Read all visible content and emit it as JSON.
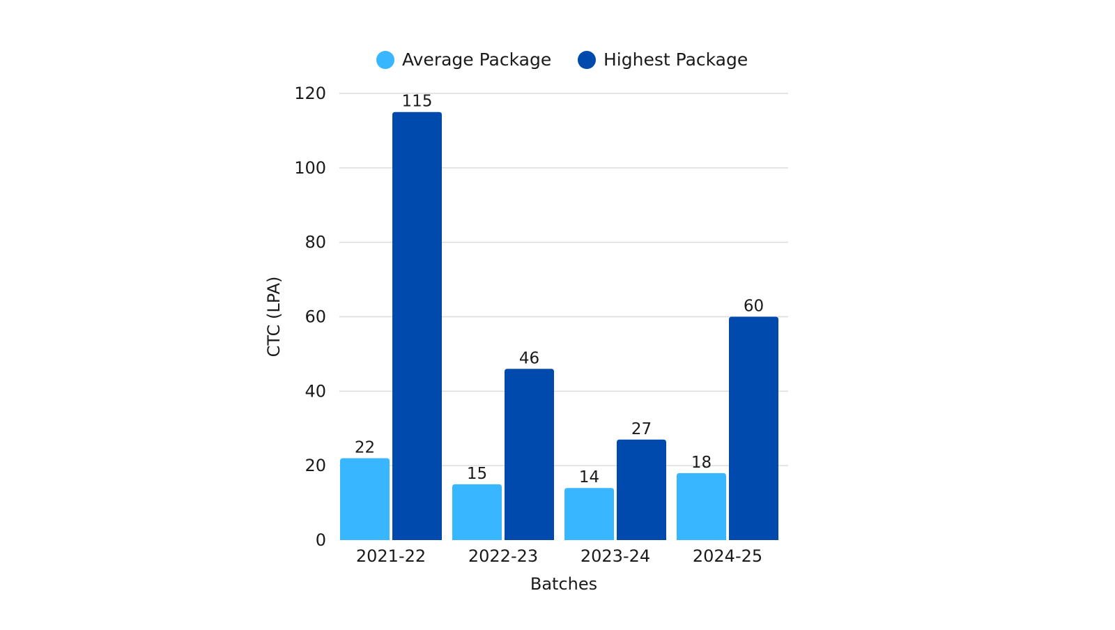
{
  "chart_data": {
    "type": "bar",
    "title": "",
    "xlabel": "Batches",
    "ylabel": "CTC (LPA)",
    "categories": [
      "2021-22",
      "2022-23",
      "2023-24",
      "2024-25"
    ],
    "series": [
      {
        "name": "Average Package",
        "color": "#38b6ff",
        "values": [
          22,
          15,
          14,
          18
        ]
      },
      {
        "name": "Highest Package",
        "color": "#004aad",
        "values": [
          115,
          46,
          27,
          60
        ]
      }
    ],
    "ylim": [
      0,
      120
    ],
    "yticks": [
      0,
      20,
      40,
      60,
      80,
      100,
      120
    ],
    "grid": true,
    "legend": "top-center",
    "data_labels": true
  }
}
